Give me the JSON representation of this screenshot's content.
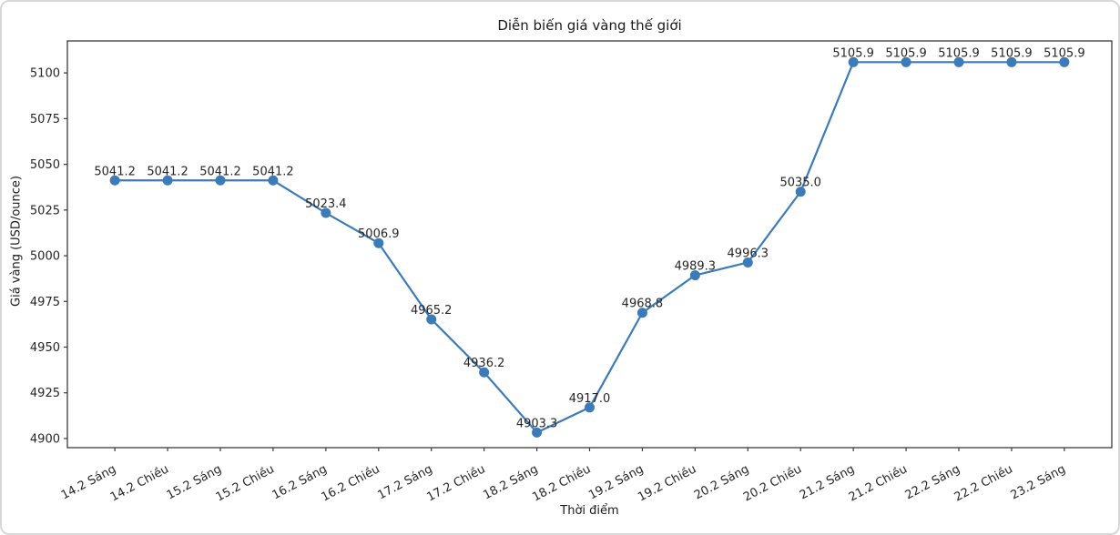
{
  "figure": {
    "background_color": "#ffffff",
    "frame_border_color": "#d7d7d7"
  },
  "chart_data": {
    "type": "line",
    "title": "Diễn biến giá vàng thế giới",
    "xlabel": "Thời điểm",
    "ylabel": "Giá vàng (USD/ounce)",
    "categories": [
      "14.2 Sáng",
      "14.2 Chiều",
      "15.2 Sáng",
      "15.2 Chiều",
      "16.2 Sáng",
      "16.2 Chiều",
      "17.2 Sáng",
      "17.2 Chiều",
      "18.2 Sáng",
      "18.2 Chiều",
      "19.2 Sáng",
      "19.2 Chiều",
      "20.2 Sáng",
      "20.2 Chiều",
      "21.2 Sáng",
      "21.2 Chiều",
      "22.2 Sáng",
      "22.2 Chiều",
      "23.2 Sáng"
    ],
    "values": [
      5041.2,
      5041.2,
      5041.2,
      5041.2,
      5023.4,
      5006.9,
      4965.2,
      4936.2,
      4903.3,
      4917.0,
      4968.8,
      4989.3,
      4996.3,
      5035.0,
      5105.9,
      5105.9,
      5105.9,
      5105.9,
      5105.9
    ],
    "point_labels": [
      "5041.2",
      "5041.2",
      "5041.2",
      "5041.2",
      "5023.4",
      "5006.9",
      "4965.2",
      "4936.2",
      "4903.3",
      "4917.0",
      "4968.8",
      "4989.3",
      "4996.3",
      "5035.0",
      "5105.9",
      "5105.9",
      "5105.9",
      "5105.9",
      "5105.9"
    ],
    "yticks": [
      4900,
      4925,
      4950,
      4975,
      5000,
      5025,
      5050,
      5075,
      5100
    ],
    "ylim": [
      4895.0,
      5117.5
    ],
    "x_tick_rotation_deg": 28,
    "grid": false,
    "legend": null,
    "marker": "o",
    "line_color": "#3d7bb8",
    "marker_color": "#3d7bb8",
    "axis_color": "#3c3c3c",
    "text_color": "#262626"
  }
}
